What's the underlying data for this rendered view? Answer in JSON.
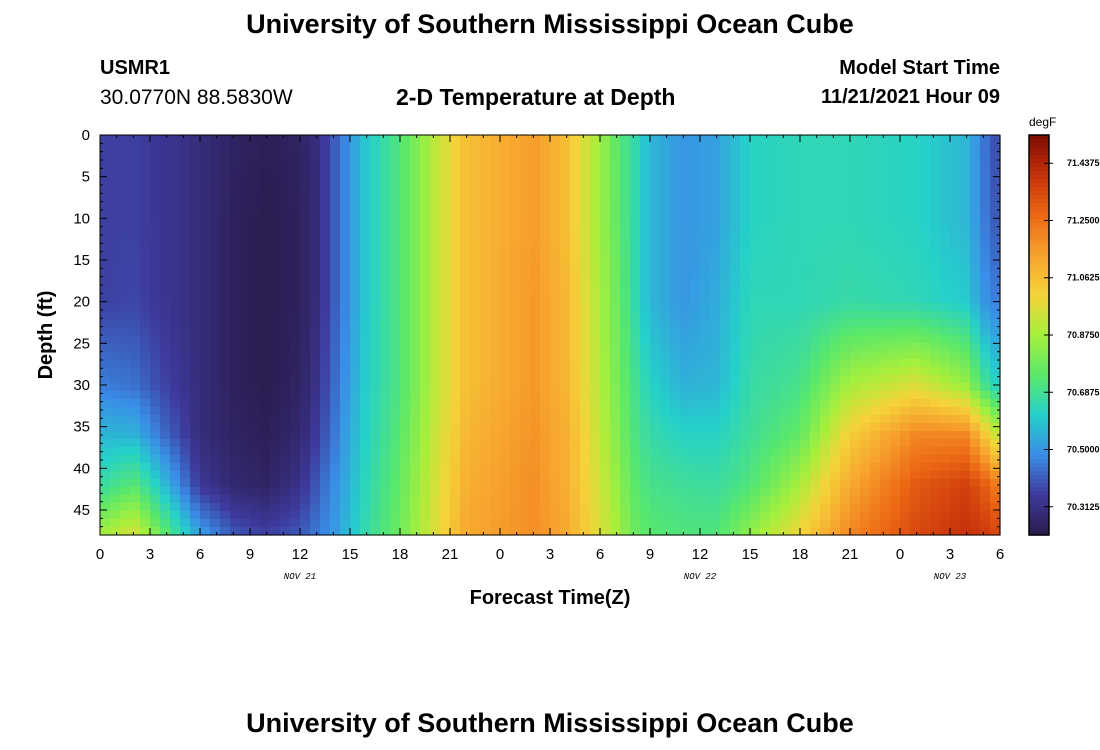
{
  "header": {
    "title": "University of Southern Mississippi Ocean Cube",
    "station_id": "USMR1",
    "coordinates": "30.0770N  88.5830W",
    "subtitle": "2-D Temperature at Depth",
    "start_label": "Model Start Time",
    "start_value": "11/21/2021 Hour 09",
    "bottom_title": "University of Southern Mississippi Ocean Cube"
  },
  "chart_data": {
    "type": "heatmap",
    "xlabel": "Forecast Time(Z)",
    "ylabel": "Depth (ft)",
    "x_tick_labels": [
      "0",
      "3",
      "6",
      "9",
      "12",
      "15",
      "18",
      "21",
      "0",
      "3",
      "6",
      "9",
      "12",
      "15",
      "18",
      "21",
      "0",
      "3",
      "6"
    ],
    "x_date_labels": [
      {
        "label": "NOV 21",
        "hour": 12
      },
      {
        "label": "NOV 22",
        "hour": 36
      },
      {
        "label": "NOV 23",
        "hour": 51
      }
    ],
    "xlim_hours": [
      0,
      54
    ],
    "y_ticks": [
      0,
      5,
      10,
      15,
      20,
      25,
      30,
      35,
      40,
      45
    ],
    "ylim": [
      0,
      48
    ],
    "y_inverted": true,
    "colorbar": {
      "unit": "degF",
      "tick_labels": [
        "71.4375",
        "71.2500",
        "71.0625",
        "70.8750",
        "70.6875",
        "70.5000",
        "70.3125"
      ],
      "tick_values": [
        71.4375,
        71.25,
        71.0625,
        70.875,
        70.6875,
        70.5,
        70.3125
      ],
      "vmin": 70.22,
      "vmax": 71.53,
      "colors": [
        "#2a1a4a",
        "#3d3a9c",
        "#3a8de8",
        "#25d1c9",
        "#5ae86a",
        "#a6ef3c",
        "#f5d33a",
        "#f7a22d",
        "#ec6714",
        "#c5300b",
        "#7e0c02"
      ]
    },
    "profiles": {
      "depths": [
        0,
        10,
        20,
        30,
        36,
        42,
        48
      ],
      "times": [
        {
          "hour": 0,
          "values": [
            70.36,
            70.36,
            70.36,
            70.46,
            70.56,
            70.66,
            70.87
          ]
        },
        {
          "hour": 2,
          "values": [
            70.36,
            70.36,
            70.37,
            70.44,
            70.56,
            70.74,
            70.96
          ]
        },
        {
          "hour": 4,
          "values": [
            70.33,
            70.33,
            70.33,
            70.36,
            70.42,
            70.56,
            70.74
          ]
        },
        {
          "hour": 6,
          "values": [
            70.3,
            70.3,
            70.3,
            70.3,
            70.3,
            70.34,
            70.52
          ]
        },
        {
          "hour": 8,
          "values": [
            70.26,
            70.25,
            70.25,
            70.25,
            70.26,
            70.28,
            70.4
          ]
        },
        {
          "hour": 10,
          "values": [
            70.24,
            70.23,
            70.23,
            70.23,
            70.24,
            70.26,
            70.36
          ]
        },
        {
          "hour": 12,
          "values": [
            70.26,
            70.25,
            70.25,
            70.26,
            70.28,
            70.32,
            70.4
          ]
        },
        {
          "hour": 13,
          "values": [
            70.3,
            70.3,
            70.3,
            70.32,
            70.35,
            70.4,
            70.45
          ]
        },
        {
          "hour": 14,
          "values": [
            70.4,
            70.4,
            70.4,
            70.42,
            70.44,
            70.48,
            70.5
          ]
        },
        {
          "hour": 15,
          "values": [
            70.5,
            70.5,
            70.5,
            70.52,
            70.54,
            70.56,
            70.58
          ]
        },
        {
          "hour": 16,
          "values": [
            70.6,
            70.6,
            70.6,
            70.61,
            70.62,
            70.64,
            70.66
          ]
        },
        {
          "hour": 18,
          "values": [
            70.72,
            70.72,
            70.72,
            70.72,
            70.74,
            70.76,
            70.78
          ]
        },
        {
          "hour": 20,
          "values": [
            70.9,
            70.9,
            70.9,
            70.9,
            70.92,
            70.94,
            70.95
          ]
        },
        {
          "hour": 22,
          "values": [
            71.06,
            71.06,
            71.06,
            71.06,
            71.08,
            71.1,
            71.12
          ]
        },
        {
          "hour": 26,
          "values": [
            71.15,
            71.15,
            71.16,
            71.16,
            71.17,
            71.18,
            71.18
          ]
        },
        {
          "hour": 28,
          "values": [
            71.06,
            71.06,
            71.08,
            71.08,
            71.1,
            71.1,
            71.12
          ]
        },
        {
          "hour": 30,
          "values": [
            70.86,
            70.86,
            70.88,
            70.9,
            70.92,
            70.94,
            70.96
          ]
        },
        {
          "hour": 31,
          "values": [
            70.75,
            70.76,
            70.78,
            70.8,
            70.82,
            70.85,
            70.88
          ]
        },
        {
          "hour": 32,
          "values": [
            70.66,
            70.66,
            70.66,
            70.7,
            70.72,
            70.75,
            70.78
          ]
        },
        {
          "hour": 33,
          "values": [
            70.56,
            70.56,
            70.56,
            70.62,
            70.66,
            70.7,
            70.74
          ]
        },
        {
          "hour": 35,
          "values": [
            70.5,
            70.5,
            70.5,
            70.55,
            70.62,
            70.68,
            70.72
          ]
        },
        {
          "hour": 37,
          "values": [
            70.52,
            70.52,
            70.54,
            70.56,
            70.62,
            70.67,
            70.72
          ]
        },
        {
          "hour": 39,
          "values": [
            70.62,
            70.62,
            70.64,
            70.66,
            70.68,
            70.72,
            70.84
          ]
        },
        {
          "hour": 42,
          "values": [
            70.64,
            70.64,
            70.64,
            70.7,
            70.76,
            70.88,
            71.0
          ]
        },
        {
          "hour": 45,
          "values": [
            70.64,
            70.64,
            70.66,
            70.88,
            71.02,
            71.12,
            71.2
          ]
        },
        {
          "hour": 49,
          "values": [
            70.62,
            70.62,
            70.64,
            70.96,
            71.2,
            71.3,
            71.34
          ]
        },
        {
          "hour": 52,
          "values": [
            70.56,
            70.56,
            70.6,
            70.85,
            71.2,
            71.36,
            71.4
          ]
        },
        {
          "hour": 53,
          "values": [
            70.45,
            70.46,
            70.5,
            70.7,
            71.05,
            71.3,
            71.38
          ]
        },
        {
          "hour": 54,
          "values": [
            70.36,
            70.38,
            70.45,
            70.6,
            70.9,
            71.2,
            71.34
          ]
        }
      ]
    }
  }
}
